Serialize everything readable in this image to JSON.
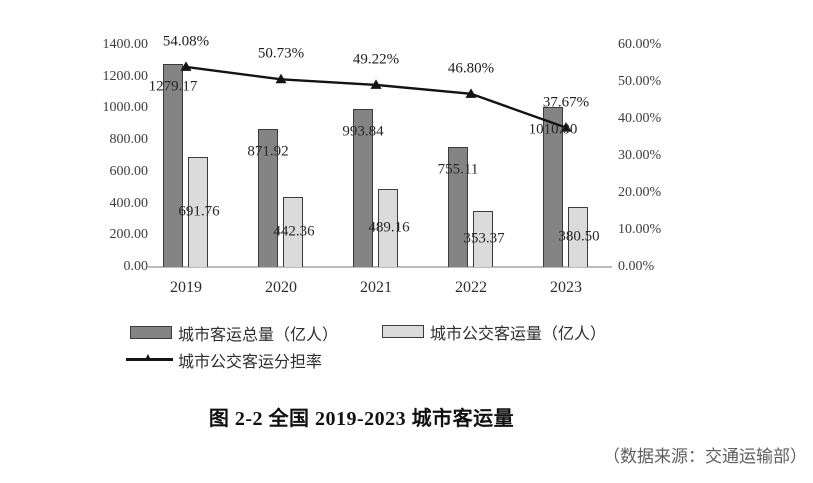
{
  "page": {
    "caption": "图 2-2  全国 2019-2023 城市客运量",
    "source_note": "（数据来源：交通运输部）"
  },
  "chart_data": {
    "type": "bar",
    "subtype": "grouped-bars-with-line-overlay",
    "title": "图 2-2 全国 2019-2023 城市客运量",
    "categories": [
      "2019",
      "2020",
      "2021",
      "2022",
      "2023"
    ],
    "series": [
      {
        "name": "城市客运总量（亿人）",
        "type": "bar",
        "color": "#848484",
        "axis": "left",
        "values": [
          1279.17,
          871.92,
          993.84,
          755.11,
          1010.0
        ],
        "labels": [
          "1279.17",
          "871.92",
          "993.84",
          "755.11",
          "1010.00"
        ]
      },
      {
        "name": "城市公交客运量（亿人）",
        "type": "bar",
        "color": "#dbdbdb",
        "axis": "left",
        "values": [
          691.76,
          442.36,
          489.16,
          353.37,
          380.5
        ],
        "labels": [
          "691.76",
          "442.36",
          "489.16",
          "353.37",
          "380.50"
        ]
      },
      {
        "name": "城市公交客运分担率",
        "type": "line",
        "color": "#141414",
        "marker": "triangle",
        "axis": "right",
        "values": [
          54.08,
          50.73,
          49.22,
          46.8,
          37.67
        ],
        "labels": [
          "54.08%",
          "50.73%",
          "49.22%",
          "46.80%",
          "37.67%"
        ]
      }
    ],
    "left_axis": {
      "min": 0,
      "max": 1400,
      "step": 200,
      "ticks": [
        "1400.00",
        "1200.00",
        "1000.00",
        "800.00",
        "600.00",
        "400.00",
        "200.00",
        "0.00"
      ]
    },
    "right_axis": {
      "min": 0,
      "max": 60,
      "step": 10,
      "ticks": [
        "60.00%",
        "50.00%",
        "40.00%",
        "30.00%",
        "20.00%",
        "10.00%",
        "0.00%"
      ]
    },
    "grid": "off",
    "legend_position": "bottom-left"
  }
}
